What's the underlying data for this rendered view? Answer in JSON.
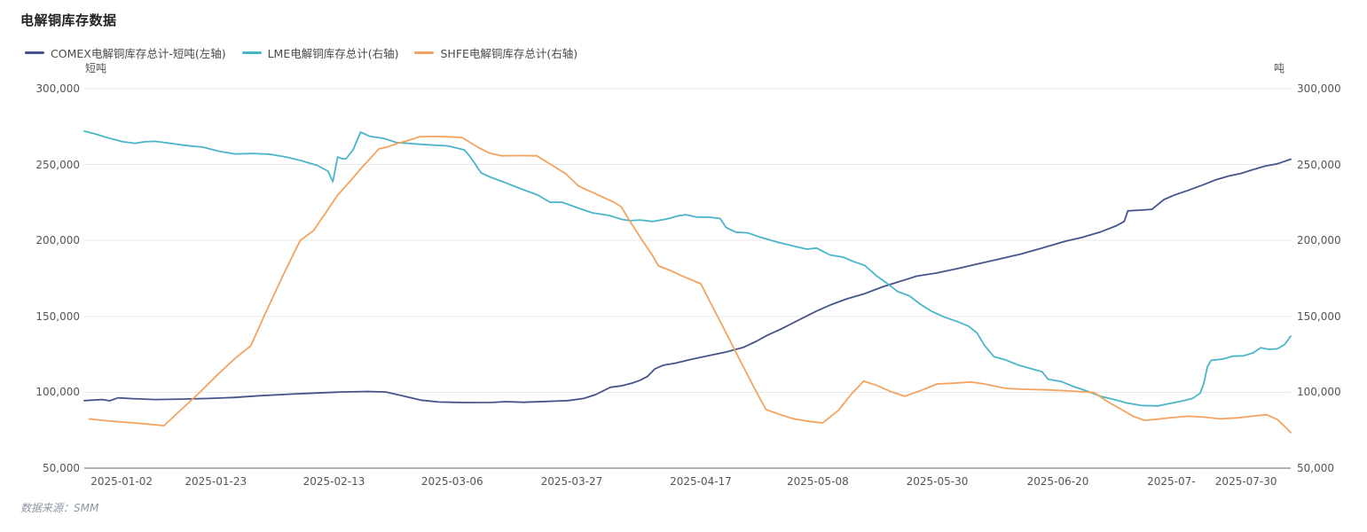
{
  "header": {
    "title": "电解铜库存数据"
  },
  "footer": {
    "source": "数据来源：SMM"
  },
  "colors": {
    "comex": "#46548c",
    "lme": "#4ab5c9",
    "shfe": "#f3a360",
    "gridline": "#e8e8e8",
    "axis_line": "#5b626e",
    "tick_text": "#555555"
  },
  "chart_data": {
    "type": "line",
    "title": "电解铜库存数据",
    "grid": true,
    "legend_position": "top-left",
    "left_axis": {
      "unit": "短吨",
      "min": 50000,
      "max": 300000,
      "tick_labels": [
        "300,000",
        "250,000",
        "200,000",
        "150,000",
        "100,000",
        "50,000"
      ]
    },
    "right_axis": {
      "unit": "吨",
      "min": 50000,
      "max": 300000,
      "tick_labels": [
        "300,000",
        "250,000",
        "200,000",
        "150,000",
        "100,000",
        "50,000"
      ]
    },
    "tick_values": [
      300000,
      250000,
      200000,
      150000,
      100000,
      50000
    ],
    "x_axis": {
      "ticks": [
        {
          "label": "2025-01-02",
          "pos": 3.1
        },
        {
          "label": "2025-01-23",
          "pos": 10.9
        },
        {
          "label": "2025-02-13",
          "pos": 20.7
        },
        {
          "label": "2025-03-06",
          "pos": 30.5
        },
        {
          "label": "2025-03-27",
          "pos": 40.4
        },
        {
          "label": "2025-04-17",
          "pos": 51.1
        },
        {
          "label": "2025-05-08",
          "pos": 60.8
        },
        {
          "label": "2025-05-30",
          "pos": 70.7
        },
        {
          "label": "2025-06-20",
          "pos": 80.7
        },
        {
          "label": "2025-07-",
          "pos": 90.1
        },
        {
          "label": "2025-07-30",
          "pos": 96.3
        }
      ]
    },
    "series": [
      {
        "name": "COMEX电解铜库存总计-短吨(左轴)",
        "axis": "left",
        "color": "#46548c",
        "points": [
          [
            0,
            94500
          ],
          [
            1.5,
            95200
          ],
          [
            2.1,
            94400
          ],
          [
            2.8,
            96300
          ],
          [
            4,
            95800
          ],
          [
            5.9,
            95200
          ],
          [
            8.1,
            95500
          ],
          [
            10.3,
            95900
          ],
          [
            12.5,
            96600
          ],
          [
            14.7,
            97800
          ],
          [
            16.9,
            98700
          ],
          [
            19.1,
            99500
          ],
          [
            21.3,
            100200
          ],
          [
            23.5,
            100500
          ],
          [
            25,
            100200
          ],
          [
            26.5,
            97500
          ],
          [
            27.9,
            94800
          ],
          [
            29.4,
            93600
          ],
          [
            31.6,
            93200
          ],
          [
            33.8,
            93300
          ],
          [
            34.9,
            93800
          ],
          [
            36.4,
            93400
          ],
          [
            38.2,
            93900
          ],
          [
            40.1,
            94500
          ],
          [
            41.4,
            95900
          ],
          [
            42.4,
            98500
          ],
          [
            43.6,
            103300
          ],
          [
            44.5,
            104200
          ],
          [
            45.4,
            106000
          ],
          [
            46.1,
            108000
          ],
          [
            46.7,
            110500
          ],
          [
            47.3,
            115500
          ],
          [
            48,
            117800
          ],
          [
            48.9,
            119000
          ],
          [
            50.2,
            121500
          ],
          [
            51.7,
            124000
          ],
          [
            53.2,
            126500
          ],
          [
            54.6,
            129500
          ],
          [
            55.7,
            133500
          ],
          [
            56.6,
            137500
          ],
          [
            57.7,
            141500
          ],
          [
            59.2,
            147500
          ],
          [
            60.7,
            153500
          ],
          [
            62,
            158000
          ],
          [
            63.2,
            161500
          ],
          [
            64.7,
            165000
          ],
          [
            66.2,
            169500
          ],
          [
            67.6,
            173000
          ],
          [
            69,
            176500
          ],
          [
            70.6,
            178500
          ],
          [
            72.4,
            181500
          ],
          [
            74.3,
            185000
          ],
          [
            75.7,
            187500
          ],
          [
            77.6,
            191000
          ],
          [
            79.4,
            195000
          ],
          [
            81.3,
            199500
          ],
          [
            82.7,
            202000
          ],
          [
            84.2,
            205500
          ],
          [
            85.5,
            209500
          ],
          [
            86.2,
            212500
          ],
          [
            86.5,
            219500
          ],
          [
            87.5,
            220000
          ],
          [
            88.5,
            220500
          ],
          [
            88.8,
            222500
          ],
          [
            89.5,
            227000
          ],
          [
            90.4,
            230000
          ],
          [
            91.5,
            233000
          ],
          [
            92.7,
            236500
          ],
          [
            93.8,
            240000
          ],
          [
            94.9,
            242500
          ],
          [
            95.8,
            244000
          ],
          [
            96.8,
            246500
          ],
          [
            97.9,
            249000
          ],
          [
            98.9,
            250500
          ],
          [
            100,
            253500
          ]
        ]
      },
      {
        "name": "LME电解铜库存总计(右轴)",
        "axis": "right",
        "color": "#4ab5c9",
        "points": [
          [
            0,
            272000
          ],
          [
            1,
            270000
          ],
          [
            2,
            267500
          ],
          [
            3.2,
            265000
          ],
          [
            4.2,
            264000
          ],
          [
            5,
            265000
          ],
          [
            5.9,
            265300
          ],
          [
            7.1,
            264000
          ],
          [
            8.5,
            262500
          ],
          [
            9.8,
            261500
          ],
          [
            11.3,
            258500
          ],
          [
            12.5,
            257000
          ],
          [
            14,
            257300
          ],
          [
            15.4,
            256800
          ],
          [
            16.7,
            255000
          ],
          [
            18,
            252500
          ],
          [
            19.3,
            249500
          ],
          [
            20.2,
            245700
          ],
          [
            20.6,
            238700
          ],
          [
            21,
            255000
          ],
          [
            21.4,
            253800
          ],
          [
            21.7,
            253800
          ],
          [
            22.3,
            260000
          ],
          [
            22.9,
            271400
          ],
          [
            23.7,
            268500
          ],
          [
            24.8,
            267300
          ],
          [
            25.9,
            264500
          ],
          [
            26.8,
            264000
          ],
          [
            27.9,
            263300
          ],
          [
            29,
            262800
          ],
          [
            30.1,
            262300
          ],
          [
            31.5,
            259700
          ],
          [
            32,
            255000
          ],
          [
            32.9,
            244500
          ],
          [
            33.7,
            241600
          ],
          [
            34.7,
            238700
          ],
          [
            36.2,
            234000
          ],
          [
            37.6,
            229900
          ],
          [
            38.6,
            225200
          ],
          [
            39.6,
            225200
          ],
          [
            40.6,
            222300
          ],
          [
            42.1,
            218200
          ],
          [
            43.5,
            216500
          ],
          [
            44.5,
            214000
          ],
          [
            45.2,
            213000
          ],
          [
            46.1,
            213500
          ],
          [
            47.1,
            212500
          ],
          [
            48.2,
            214000
          ],
          [
            49.3,
            216300
          ],
          [
            49.9,
            217000
          ],
          [
            50.7,
            215500
          ],
          [
            51.8,
            215300
          ],
          [
            52.7,
            214500
          ],
          [
            53.2,
            208500
          ],
          [
            54,
            205500
          ],
          [
            55,
            205000
          ],
          [
            56.1,
            202000
          ],
          [
            57.4,
            199000
          ],
          [
            58.7,
            196500
          ],
          [
            59.9,
            194300
          ],
          [
            60.7,
            195000
          ],
          [
            61.8,
            190500
          ],
          [
            62.9,
            189000
          ],
          [
            63.8,
            186000
          ],
          [
            64.7,
            183500
          ],
          [
            65.7,
            176500
          ],
          [
            66.5,
            172000
          ],
          [
            67.4,
            166500
          ],
          [
            68.4,
            163500
          ],
          [
            69.3,
            158000
          ],
          [
            70.2,
            153500
          ],
          [
            71.3,
            149500
          ],
          [
            72.4,
            146500
          ],
          [
            73.3,
            143500
          ],
          [
            74,
            139000
          ],
          [
            74.6,
            131000
          ],
          [
            75.4,
            123500
          ],
          [
            76.3,
            121500
          ],
          [
            77.4,
            118000
          ],
          [
            78.5,
            115500
          ],
          [
            79.4,
            113500
          ],
          [
            79.9,
            108500
          ],
          [
            81,
            107000
          ],
          [
            82,
            103800
          ],
          [
            83.1,
            100800
          ],
          [
            84.2,
            97500
          ],
          [
            85.3,
            95300
          ],
          [
            86.4,
            93000
          ],
          [
            87.6,
            91300
          ],
          [
            89,
            91000
          ],
          [
            89.9,
            92500
          ],
          [
            91,
            94300
          ],
          [
            91.9,
            96000
          ],
          [
            92.5,
            99500
          ],
          [
            92.8,
            106000
          ],
          [
            93.1,
            117000
          ],
          [
            93.4,
            121000
          ],
          [
            94.3,
            121800
          ],
          [
            95.2,
            123800
          ],
          [
            96.1,
            124000
          ],
          [
            96.9,
            126000
          ],
          [
            97.5,
            129300
          ],
          [
            98.2,
            128300
          ],
          [
            98.9,
            128600
          ],
          [
            99.5,
            131500
          ],
          [
            100,
            137000
          ]
        ]
      },
      {
        "name": "SHFE电解铜库存总计(右轴)",
        "axis": "right",
        "color": "#f3a360",
        "points": [
          [
            0.4,
            82500
          ],
          [
            1.7,
            81300
          ],
          [
            3.3,
            80300
          ],
          [
            4.9,
            79300
          ],
          [
            6.6,
            78000
          ],
          [
            8.1,
            89100
          ],
          [
            9.6,
            100200
          ],
          [
            11,
            111200
          ],
          [
            12.5,
            122300
          ],
          [
            13.8,
            130600
          ],
          [
            14.9,
            150000
          ],
          [
            16.5,
            177400
          ],
          [
            17.9,
            200000
          ],
          [
            19,
            206500
          ],
          [
            19.9,
            216900
          ],
          [
            21,
            229900
          ],
          [
            22.1,
            239600
          ],
          [
            23,
            248000
          ],
          [
            23.9,
            255700
          ],
          [
            24.4,
            260300
          ],
          [
            25.1,
            261500
          ],
          [
            25.9,
            263800
          ],
          [
            26.8,
            265800
          ],
          [
            27.8,
            268400
          ],
          [
            29,
            268500
          ],
          [
            30.1,
            268300
          ],
          [
            31.3,
            267900
          ],
          [
            32.6,
            261500
          ],
          [
            33.6,
            257500
          ],
          [
            34.6,
            255800
          ],
          [
            36,
            255900
          ],
          [
            37.5,
            255800
          ],
          [
            38.8,
            249500
          ],
          [
            39.9,
            244000
          ],
          [
            41,
            235700
          ],
          [
            42.3,
            231000
          ],
          [
            43.9,
            225200
          ],
          [
            44.5,
            222300
          ],
          [
            45.2,
            213000
          ],
          [
            46.3,
            199500
          ],
          [
            47.1,
            190000
          ],
          [
            47.6,
            183200
          ],
          [
            48.5,
            180500
          ],
          [
            49.6,
            176500
          ],
          [
            51.1,
            171500
          ],
          [
            52.2,
            154500
          ],
          [
            53.3,
            137500
          ],
          [
            54.4,
            120400
          ],
          [
            55.5,
            103400
          ],
          [
            56.5,
            88600
          ],
          [
            57.6,
            85500
          ],
          [
            58.8,
            82500
          ],
          [
            60.1,
            80800
          ],
          [
            61.2,
            79800
          ],
          [
            62.5,
            88000
          ],
          [
            63.6,
            99000
          ],
          [
            64.6,
            107300
          ],
          [
            65.7,
            104500
          ],
          [
            66.9,
            100300
          ],
          [
            68,
            97400
          ],
          [
            69.3,
            101000
          ],
          [
            70.7,
            105500
          ],
          [
            72.1,
            106000
          ],
          [
            73.5,
            106800
          ],
          [
            74.6,
            105500
          ],
          [
            76.3,
            102600
          ],
          [
            77.9,
            102000
          ],
          [
            79.8,
            101600
          ],
          [
            81.6,
            100900
          ],
          [
            83.7,
            99800
          ],
          [
            84.9,
            93500
          ],
          [
            86,
            88500
          ],
          [
            87,
            84000
          ],
          [
            87.9,
            81500
          ],
          [
            89,
            82300
          ],
          [
            90.1,
            83300
          ],
          [
            91.5,
            84200
          ],
          [
            92.9,
            83600
          ],
          [
            94.1,
            82500
          ],
          [
            95.6,
            83100
          ],
          [
            96.8,
            84200
          ],
          [
            98,
            85200
          ],
          [
            98.9,
            82000
          ],
          [
            99.5,
            77500
          ],
          [
            100,
            73400
          ]
        ]
      }
    ]
  }
}
